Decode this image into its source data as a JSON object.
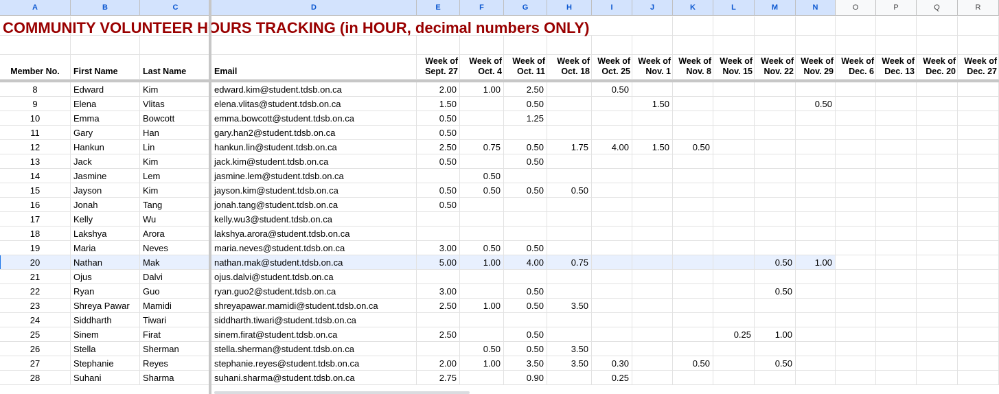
{
  "columns": [
    "A",
    "B",
    "C",
    "D",
    "E",
    "F",
    "G",
    "H",
    "I",
    "J",
    "K",
    "L",
    "M",
    "N",
    "O",
    "P",
    "Q",
    "R"
  ],
  "title": "COMMUNITY VOLUNTEER HOURS TRACKING (in HOUR, decimal numbers ONLY)",
  "headers": {
    "member_no": "Member No.",
    "first_name": "First Name",
    "last_name": "Last Name",
    "email": "Email",
    "weeks": [
      [
        "Week of",
        "Sept. 27"
      ],
      [
        "Week of",
        "Oct. 4"
      ],
      [
        "Week of",
        "Oct. 11"
      ],
      [
        "Week of",
        "Oct. 18"
      ],
      [
        "Week of",
        "Oct. 25"
      ],
      [
        "Week of",
        "Nov. 1"
      ],
      [
        "Week of",
        "Nov. 8"
      ],
      [
        "Week of",
        "Nov. 15"
      ],
      [
        "Week of",
        "Nov. 22"
      ],
      [
        "Week of",
        "Nov. 29"
      ],
      [
        "Week of",
        "Dec. 6"
      ],
      [
        "Week of",
        "Dec. 13"
      ],
      [
        "Week of",
        "Dec. 20"
      ],
      [
        "Week of",
        "Dec. 27"
      ]
    ]
  },
  "selected_row_index": 12,
  "rows": [
    {
      "no": "8",
      "first": "Edward",
      "last": "Kim",
      "email": "edward.kim@student.tdsb.on.ca",
      "hours": [
        "2.00",
        "1.00",
        "2.50",
        "",
        "0.50",
        "",
        "",
        "",
        "",
        "",
        "",
        "",
        "",
        ""
      ]
    },
    {
      "no": "9",
      "first": "Elena",
      "last": "Vlitas",
      "email": "elena.vlitas@student.tdsb.on.ca",
      "hours": [
        "1.50",
        "",
        "0.50",
        "",
        "",
        "1.50",
        "",
        "",
        "",
        "0.50",
        "",
        "",
        "",
        ""
      ]
    },
    {
      "no": "10",
      "first": "Emma",
      "last": "Bowcott",
      "email": "emma.bowcott@student.tdsb.on.ca",
      "hours": [
        "0.50",
        "",
        "1.25",
        "",
        "",
        "",
        "",
        "",
        "",
        "",
        "",
        "",
        "",
        ""
      ]
    },
    {
      "no": "11",
      "first": "Gary",
      "last": "Han",
      "email": "gary.han2@student.tdsb.on.ca",
      "hours": [
        "0.50",
        "",
        "",
        "",
        "",
        "",
        "",
        "",
        "",
        "",
        "",
        "",
        "",
        ""
      ]
    },
    {
      "no": "12",
      "first": "Hankun",
      "last": "Lin",
      "email": "hankun.lin@student.tdsb.on.ca",
      "hours": [
        "2.50",
        "0.75",
        "0.50",
        "1.75",
        "4.00",
        "1.50",
        "0.50",
        "",
        "",
        "",
        "",
        "",
        "",
        ""
      ]
    },
    {
      "no": "13",
      "first": "Jack",
      "last": "Kim",
      "email": "jack.kim@student.tdsb.on.ca",
      "hours": [
        "0.50",
        "",
        "0.50",
        "",
        "",
        "",
        "",
        "",
        "",
        "",
        "",
        "",
        "",
        ""
      ]
    },
    {
      "no": "14",
      "first": "Jasmine",
      "last": "Lem",
      "email": "jasmine.lem@student.tdsb.on.ca",
      "hours": [
        "",
        "0.50",
        "",
        "",
        "",
        "",
        "",
        "",
        "",
        "",
        "",
        "",
        "",
        ""
      ]
    },
    {
      "no": "15",
      "first": "Jayson",
      "last": "Kim",
      "email": "jayson.kim@student.tdsb.on.ca",
      "hours": [
        "0.50",
        "0.50",
        "0.50",
        "0.50",
        "",
        "",
        "",
        "",
        "",
        "",
        "",
        "",
        "",
        ""
      ]
    },
    {
      "no": "16",
      "first": "Jonah",
      "last": "Tang",
      "email": "jonah.tang@student.tdsb.on.ca",
      "hours": [
        "0.50",
        "",
        "",
        "",
        "",
        "",
        "",
        "",
        "",
        "",
        "",
        "",
        "",
        ""
      ]
    },
    {
      "no": "17",
      "first": "Kelly",
      "last": "Wu",
      "email": "kelly.wu3@student.tdsb.on.ca",
      "hours": [
        "",
        "",
        "",
        "",
        "",
        "",
        "",
        "",
        "",
        "",
        "",
        "",
        "",
        ""
      ]
    },
    {
      "no": "18",
      "first": "Lakshya",
      "last": "Arora",
      "email": "lakshya.arora@student.tdsb.on.ca",
      "hours": [
        "",
        "",
        "",
        "",
        "",
        "",
        "",
        "",
        "",
        "",
        "",
        "",
        "",
        ""
      ]
    },
    {
      "no": "19",
      "first": "Maria",
      "last": "Neves",
      "email": "maria.neves@student.tdsb.on.ca",
      "hours": [
        "3.00",
        "0.50",
        "0.50",
        "",
        "",
        "",
        "",
        "",
        "",
        "",
        "",
        "",
        "",
        ""
      ]
    },
    {
      "no": "20",
      "first": "Nathan",
      "last": "Mak",
      "email": "nathan.mak@student.tdsb.on.ca",
      "hours": [
        "5.00",
        "1.00",
        "4.00",
        "0.75",
        "",
        "",
        "",
        "",
        "0.50",
        "1.00",
        "",
        "",
        "",
        ""
      ]
    },
    {
      "no": "21",
      "first": "Ojus",
      "last": "Dalvi",
      "email": "ojus.dalvi@student.tdsb.on.ca",
      "hours": [
        "",
        "",
        "",
        "",
        "",
        "",
        "",
        "",
        "",
        "",
        "",
        "",
        "",
        ""
      ]
    },
    {
      "no": "22",
      "first": "Ryan",
      "last": "Guo",
      "email": "ryan.guo2@student.tdsb.on.ca",
      "hours": [
        "3.00",
        "",
        "0.50",
        "",
        "",
        "",
        "",
        "",
        "0.50",
        "",
        "",
        "",
        "",
        ""
      ]
    },
    {
      "no": "23",
      "first": "Shreya Pawar",
      "last": "Mamidi",
      "email": "shreyapawar.mamidi@student.tdsb.on.ca",
      "hours": [
        "2.50",
        "1.00",
        "0.50",
        "3.50",
        "",
        "",
        "",
        "",
        "",
        "",
        "",
        "",
        "",
        ""
      ]
    },
    {
      "no": "24",
      "first": "Siddharth",
      "last": "Tiwari",
      "email": "siddharth.tiwari@student.tdsb.on.ca",
      "hours": [
        "",
        "",
        "",
        "",
        "",
        "",
        "",
        "",
        "",
        "",
        "",
        "",
        "",
        ""
      ]
    },
    {
      "no": "25",
      "first": "Sinem",
      "last": "Firat",
      "email": "sinem.firat@student.tdsb.on.ca",
      "hours": [
        "2.50",
        "",
        "0.50",
        "",
        "",
        "",
        "",
        "0.25",
        "1.00",
        "",
        "",
        "",
        "",
        ""
      ]
    },
    {
      "no": "26",
      "first": "Stella",
      "last": "Sherman",
      "email": "stella.sherman@student.tdsb.on.ca",
      "hours": [
        "",
        "0.50",
        "0.50",
        "3.50",
        "",
        "",
        "",
        "",
        "",
        "",
        "",
        "",
        "",
        ""
      ]
    },
    {
      "no": "27",
      "first": "Stephanie",
      "last": "Reyes",
      "email": "stephanie.reyes@student.tdsb.on.ca",
      "hours": [
        "2.00",
        "1.00",
        "3.50",
        "3.50",
        "0.30",
        "",
        "0.50",
        "",
        "0.50",
        "",
        "",
        "",
        "",
        ""
      ]
    },
    {
      "no": "28",
      "first": "Suhani",
      "last": "Sharma",
      "email": "suhani.sharma@student.tdsb.on.ca",
      "hours": [
        "2.75",
        "",
        "0.90",
        "",
        "0.25",
        "",
        "",
        "",
        "",
        "",
        "",
        "",
        "",
        ""
      ]
    }
  ]
}
